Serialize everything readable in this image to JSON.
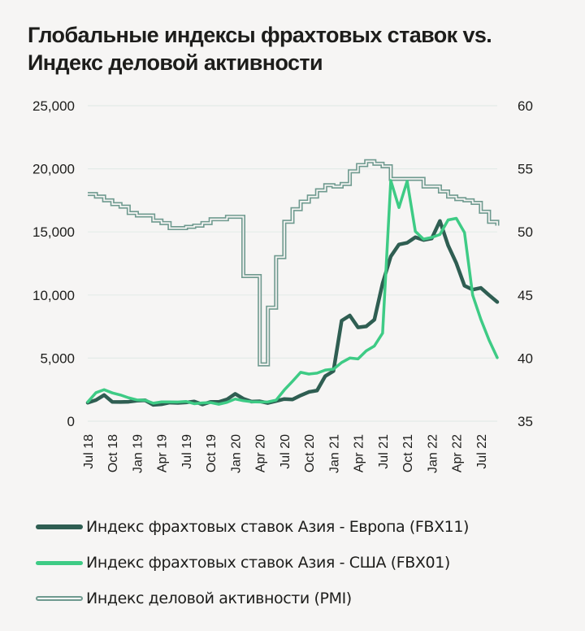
{
  "title": {
    "line1": "Глобальные индексы фрахтовых ставок vs.",
    "line2": "Индекс деловой активности"
  },
  "legend": [
    {
      "label": "Индекс фрахтовых ставок Азия - Европа (FBX11)",
      "color": "#2f5e52"
    },
    {
      "label": "Индекс фрахтовых ставок Азия - США (FBX01)",
      "color": "#3ecb85"
    },
    {
      "label": "Индекс деловой активности (PMI)",
      "color": "#6f9a8f"
    }
  ],
  "chart_data": {
    "type": "line",
    "title": "Глобальные индексы фрахтовых ставок vs. Индекс деловой активности",
    "xlabel": "",
    "ylabel": "",
    "y2label": "",
    "ylim": [
      0,
      25000
    ],
    "y2lim": [
      35,
      60
    ],
    "y_ticks": [
      "0",
      "5,000",
      "10,000",
      "15,000",
      "20,000",
      "25,000"
    ],
    "y_tick_values": [
      0,
      5000,
      10000,
      15000,
      20000,
      25000
    ],
    "y2_ticks": [
      "35",
      "40",
      "45",
      "50",
      "55",
      "60"
    ],
    "y2_tick_values": [
      35,
      40,
      45,
      50,
      55,
      60
    ],
    "x_ticks": [
      "Jul 18",
      "Oct 18",
      "Jan 19",
      "Apr 19",
      "Jul 19",
      "Oct 19",
      "Jan 20",
      "Apr 20",
      "Jul 20",
      "Oct 20",
      "Jan 21",
      "Apr 21",
      "Jul 21",
      "Oct 21",
      "Jan 22",
      "Apr 22",
      "Jul 22"
    ],
    "grid": true,
    "legend_position": "bottom",
    "x": [
      "2018-07",
      "2018-08",
      "2018-09",
      "2018-10",
      "2018-11",
      "2018-12",
      "2019-01",
      "2019-02",
      "2019-03",
      "2019-04",
      "2019-05",
      "2019-06",
      "2019-07",
      "2019-08",
      "2019-09",
      "2019-10",
      "2019-11",
      "2019-12",
      "2020-01",
      "2020-02",
      "2020-03",
      "2020-04",
      "2020-05",
      "2020-06",
      "2020-07",
      "2020-08",
      "2020-09",
      "2020-10",
      "2020-11",
      "2020-12",
      "2021-01",
      "2021-02",
      "2021-03",
      "2021-04",
      "2021-05",
      "2021-06",
      "2021-07",
      "2021-08",
      "2021-09",
      "2021-10",
      "2021-11",
      "2021-12",
      "2022-01",
      "2022-02",
      "2022-03",
      "2022-04",
      "2022-05",
      "2022-06",
      "2022-07",
      "2022-08",
      "2022-09"
    ],
    "series": [
      {
        "name": "Индекс фрахтовых ставок Азия - Европа (FBX11)",
        "axis": "left",
        "values": [
          1500,
          1700,
          2000,
          1600,
          1500,
          1500,
          1700,
          1600,
          1300,
          1400,
          1400,
          1500,
          1500,
          1500,
          1400,
          1500,
          1500,
          1800,
          2100,
          1800,
          1600,
          1500,
          1500,
          1600,
          1700,
          1800,
          2000,
          2300,
          2500,
          3500,
          4000,
          8000,
          8300,
          7500,
          7500,
          8000,
          11000,
          13000,
          14000,
          14200,
          14500,
          14400,
          14500,
          15800,
          14000,
          12500,
          10700,
          10500,
          10500,
          10000,
          9500
        ]
      },
      {
        "name": "Индекс фрахтовых ставок Азия - США (FBX01)",
        "axis": "left",
        "values": [
          1600,
          2200,
          2500,
          2300,
          2000,
          1900,
          1700,
          1600,
          1500,
          1500,
          1500,
          1600,
          1500,
          1400,
          1500,
          1400,
          1400,
          1500,
          1700,
          1700,
          1500,
          1500,
          1600,
          1600,
          2500,
          3200,
          3800,
          3800,
          3800,
          4000,
          4200,
          4600,
          5000,
          5000,
          5500,
          6000,
          7000,
          19000,
          17000,
          19000,
          15000,
          14500,
          14500,
          14800,
          16000,
          16000,
          15000,
          10000,
          8000,
          6500,
          5000
        ]
      },
      {
        "name": "Индекс деловой активности (PMI)",
        "axis": "right",
        "values": [
          53.0,
          52.8,
          52.5,
          52.2,
          52.0,
          51.5,
          51.3,
          51.3,
          50.9,
          50.7,
          50.3,
          50.3,
          50.4,
          50.5,
          50.7,
          51.0,
          51.0,
          51.2,
          51.2,
          46.5,
          46.5,
          39.5,
          44.0,
          48.0,
          50.8,
          51.8,
          52.4,
          52.8,
          53.3,
          53.7,
          53.6,
          53.8,
          54.8,
          55.3,
          55.6,
          55.4,
          55.2,
          54.2,
          54.2,
          54.2,
          54.2,
          53.6,
          53.6,
          53.2,
          52.8,
          52.6,
          52.5,
          52.3,
          51.6,
          50.8,
          50.5
        ]
      }
    ]
  }
}
